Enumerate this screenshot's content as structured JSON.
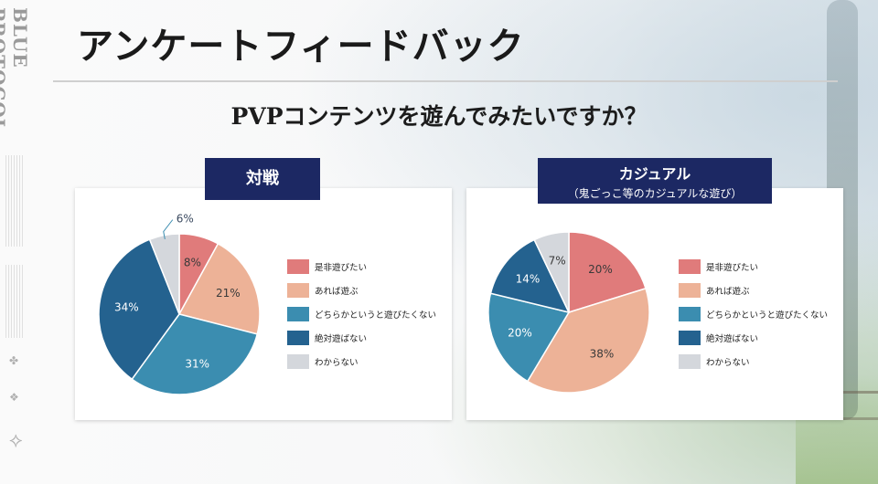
{
  "page": {
    "title": "アンケートフィードバック",
    "question": "PVPコンテンツを遊んでみたいですか？",
    "side_logo": "BLUE PROTOCOL"
  },
  "legend_labels": [
    "是非遊びたい",
    "あれば遊ぶ",
    "どちらかというと遊びたくない",
    "絶対遊ばない",
    "わからない"
  ],
  "colors": [
    "#e07b7b",
    "#edb297",
    "#3b8db0",
    "#24628f",
    "#d4d7dc"
  ],
  "chart_data": [
    {
      "type": "pie",
      "title": "対戦",
      "categories": [
        "是非遊びたい",
        "あれば遊ぶ",
        "どちらかというと遊びたくない",
        "絶対遊ばない",
        "わからない"
      ],
      "values": [
        8,
        21,
        31,
        34,
        6
      ],
      "labels": [
        "8%",
        "21%",
        "31%",
        "34%",
        "6%"
      ],
      "legend": "right"
    },
    {
      "type": "pie",
      "title": "カジュアル",
      "subtitle": "（鬼ごっこ等のカジュアルな遊び）",
      "categories": [
        "是非遊びたい",
        "あれば遊ぶ",
        "どちらかというと遊びたくない",
        "絶対遊ばない",
        "わからない"
      ],
      "values": [
        20,
        38,
        20,
        14,
        7
      ],
      "labels": [
        "20%",
        "38%",
        "20%",
        "14%",
        "7%"
      ],
      "legend": "right"
    }
  ]
}
